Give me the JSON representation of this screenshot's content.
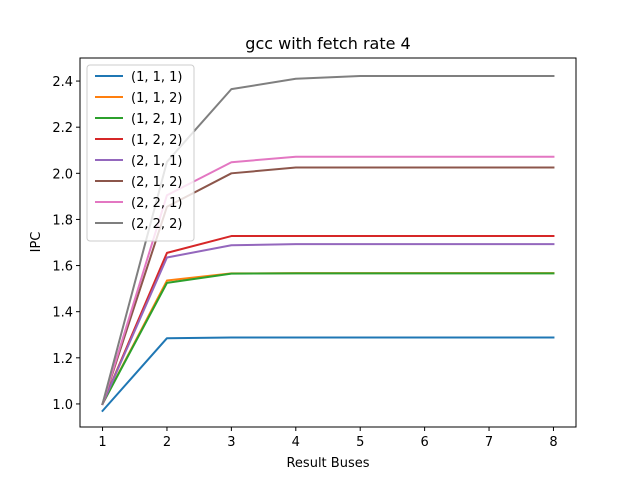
{
  "chart_data": {
    "type": "line",
    "title": "gcc with fetch rate 4",
    "xlabel": "Result Buses",
    "ylabel": "IPC",
    "x": [
      1,
      2,
      3,
      4,
      5,
      6,
      7,
      8
    ],
    "xlim": [
      0.65,
      8.35
    ],
    "ylim": [
      0.9,
      2.5
    ],
    "xticks": [
      1,
      2,
      3,
      4,
      5,
      6,
      7,
      8
    ],
    "yticks": [
      1.0,
      1.2,
      1.4,
      1.6,
      1.8,
      2.0,
      2.2,
      2.4
    ],
    "ytick_labels": [
      "1.0",
      "1.2",
      "1.4",
      "1.6",
      "1.8",
      "2.0",
      "2.2",
      "2.4"
    ],
    "grid": false,
    "legend_position": "top-left",
    "series": [
      {
        "name": "(1, 1, 1)",
        "color": "#1f77b4",
        "values": [
          0.97,
          1.285,
          1.288,
          1.288,
          1.288,
          1.288,
          1.288,
          1.288
        ]
      },
      {
        "name": "(1, 1, 2)",
        "color": "#ff7f0e",
        "values": [
          1.0,
          1.535,
          1.566,
          1.567,
          1.567,
          1.567,
          1.567,
          1.567
        ]
      },
      {
        "name": "(1, 2, 1)",
        "color": "#2ca02c",
        "values": [
          1.0,
          1.525,
          1.565,
          1.566,
          1.566,
          1.566,
          1.566,
          1.566
        ]
      },
      {
        "name": "(1, 2, 2)",
        "color": "#d62728",
        "values": [
          1.0,
          1.655,
          1.728,
          1.728,
          1.728,
          1.728,
          1.728,
          1.728
        ]
      },
      {
        "name": "(2, 1, 1)",
        "color": "#9467bd",
        "values": [
          1.0,
          1.635,
          1.688,
          1.693,
          1.693,
          1.693,
          1.693,
          1.693
        ]
      },
      {
        "name": "(2, 1, 2)",
        "color": "#8c564b",
        "values": [
          1.0,
          1.855,
          2.0,
          2.025,
          2.025,
          2.025,
          2.025,
          2.025
        ]
      },
      {
        "name": "(2, 2, 1)",
        "color": "#e377c2",
        "values": [
          1.0,
          1.905,
          2.048,
          2.072,
          2.072,
          2.072,
          2.072,
          2.072
        ]
      },
      {
        "name": "(2, 2, 2)",
        "color": "#7f7f7f",
        "values": [
          1.0,
          2.05,
          2.365,
          2.41,
          2.422,
          2.422,
          2.422,
          2.422
        ]
      }
    ]
  }
}
